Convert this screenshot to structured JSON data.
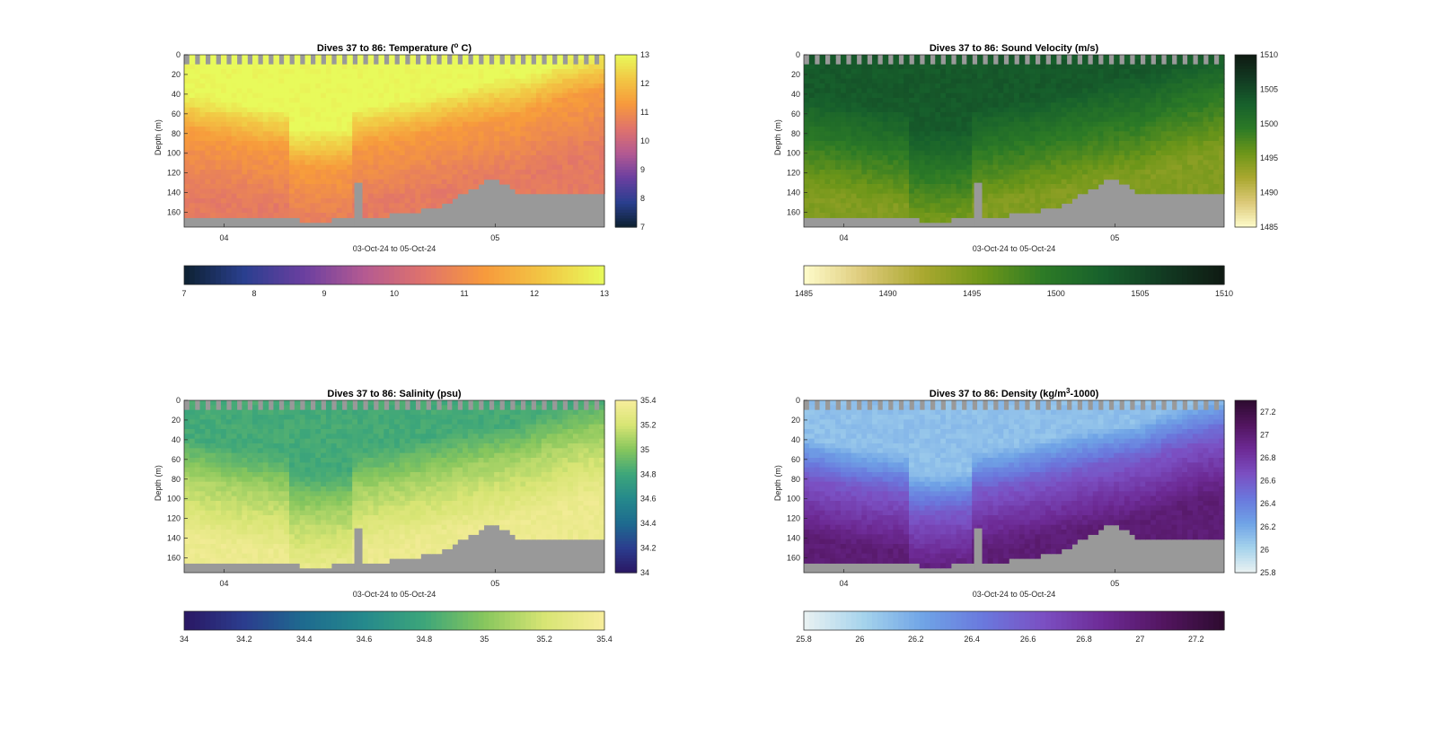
{
  "figure": {
    "panels": [
      "temperature",
      "sound_velocity",
      "salinity",
      "density"
    ]
  },
  "chart_data": [
    {
      "id": "temperature",
      "type": "heatmap",
      "title_main": "Dives 37 to 86: Temperature (",
      "title_sup": "o",
      "title_tail": " C)",
      "xlabel": "03-Oct-24 to 05-Oct-24",
      "ylabel": "Depth (m)",
      "x_ticks": [
        "04",
        "05"
      ],
      "ylim": [
        0,
        175
      ],
      "y_ticks": [
        0,
        20,
        40,
        60,
        80,
        100,
        120,
        140,
        160
      ],
      "clim": [
        7,
        13
      ],
      "colorbar_ticks_side": [
        "7",
        "8",
        "9",
        "10",
        "11",
        "12",
        "13"
      ],
      "colorbar_ticks_bottom": [
        "7",
        "8",
        "9",
        "10",
        "11",
        "12",
        "13"
      ],
      "colormap": [
        "#0d2131",
        "#2a3f8f",
        "#6b3fa0",
        "#b45a92",
        "#e0736b",
        "#f79a3c",
        "#f2c744",
        "#e8fa5b"
      ],
      "no_data_color": "#999999",
      "profile": {
        "surface": 13,
        "mid": 11.3,
        "deep": 10.6
      }
    },
    {
      "id": "sound_velocity",
      "type": "heatmap",
      "title_main": "Dives 37 to 86: Sound Velocity (m/s)",
      "title_sup": "",
      "title_tail": "",
      "xlabel": "03-Oct-24 to 05-Oct-24",
      "ylabel": "Depth (m)",
      "x_ticks": [
        "04",
        "05"
      ],
      "ylim": [
        0,
        175
      ],
      "y_ticks": [
        0,
        20,
        40,
        60,
        80,
        100,
        120,
        140,
        160
      ],
      "clim": [
        1485,
        1510
      ],
      "colorbar_ticks_side": [
        "1485",
        "1490",
        "1495",
        "1500",
        "1505",
        "1510"
      ],
      "colorbar_ticks_bottom": [
        "1485",
        "1490",
        "1495",
        "1500",
        "1505",
        "1510"
      ],
      "colormap": [
        "#fefccb",
        "#dcc978",
        "#a9a82f",
        "#6d9619",
        "#2c7a26",
        "#17602c",
        "#123a22",
        "#0f1a12"
      ],
      "no_data_color": "#999999",
      "profile": {
        "surface": 1503.5,
        "mid": 1500,
        "deep": 1494.5
      }
    },
    {
      "id": "salinity",
      "type": "heatmap",
      "title_main": "Dives 37 to 86: Salinity (psu)",
      "title_sup": "",
      "title_tail": "",
      "xlabel": "03-Oct-24 to 05-Oct-24",
      "ylabel": "Depth (m)",
      "x_ticks": [
        "04",
        "05"
      ],
      "ylim": [
        0,
        175
      ],
      "y_ticks": [
        0,
        20,
        40,
        60,
        80,
        100,
        120,
        140,
        160
      ],
      "clim": [
        34,
        35.4
      ],
      "colorbar_ticks_side": [
        "34",
        "34.2",
        "34.4",
        "34.6",
        "34.8",
        "35",
        "35.2",
        "35.4"
      ],
      "colorbar_ticks_bottom": [
        "34",
        "34.2",
        "34.4",
        "34.6",
        "34.8",
        "35",
        "35.2",
        "35.4"
      ],
      "colormap": [
        "#2a1763",
        "#2b3d8e",
        "#1e6b8f",
        "#25898c",
        "#3da67a",
        "#87c65d",
        "#d8e574",
        "#f7ed9c"
      ],
      "no_data_color": "#999999",
      "profile": {
        "surface": 34.82,
        "mid": 35.08,
        "deep": 35.33
      }
    },
    {
      "id": "density",
      "type": "heatmap",
      "title_main": "Dives 37 to 86: Density (kg/m",
      "title_sup": "3",
      "title_tail": "-1000)",
      "xlabel": "03-Oct-24 to 05-Oct-24",
      "ylabel": "Depth (m)",
      "x_ticks": [
        "04",
        "05"
      ],
      "ylim": [
        0,
        175
      ],
      "y_ticks": [
        0,
        20,
        40,
        60,
        80,
        100,
        120,
        140,
        160
      ],
      "clim": [
        25.8,
        27.3
      ],
      "colorbar_ticks_side": [
        "25.8",
        "26",
        "26.2",
        "26.4",
        "26.6",
        "26.8",
        "27",
        "27.2"
      ],
      "colorbar_ticks_bottom": [
        "25.8",
        "26",
        "26.2",
        "26.4",
        "26.6",
        "26.8",
        "27",
        "27.2"
      ],
      "colormap": [
        "#eaf2f2",
        "#a5d3ec",
        "#6fa3e6",
        "#6a78dd",
        "#7b4fc2",
        "#6d2a95",
        "#52155f",
        "#2d0b2f"
      ],
      "no_data_color": "#999999",
      "profile": {
        "surface": 26.1,
        "mid": 26.6,
        "deep": 27.0
      }
    }
  ]
}
